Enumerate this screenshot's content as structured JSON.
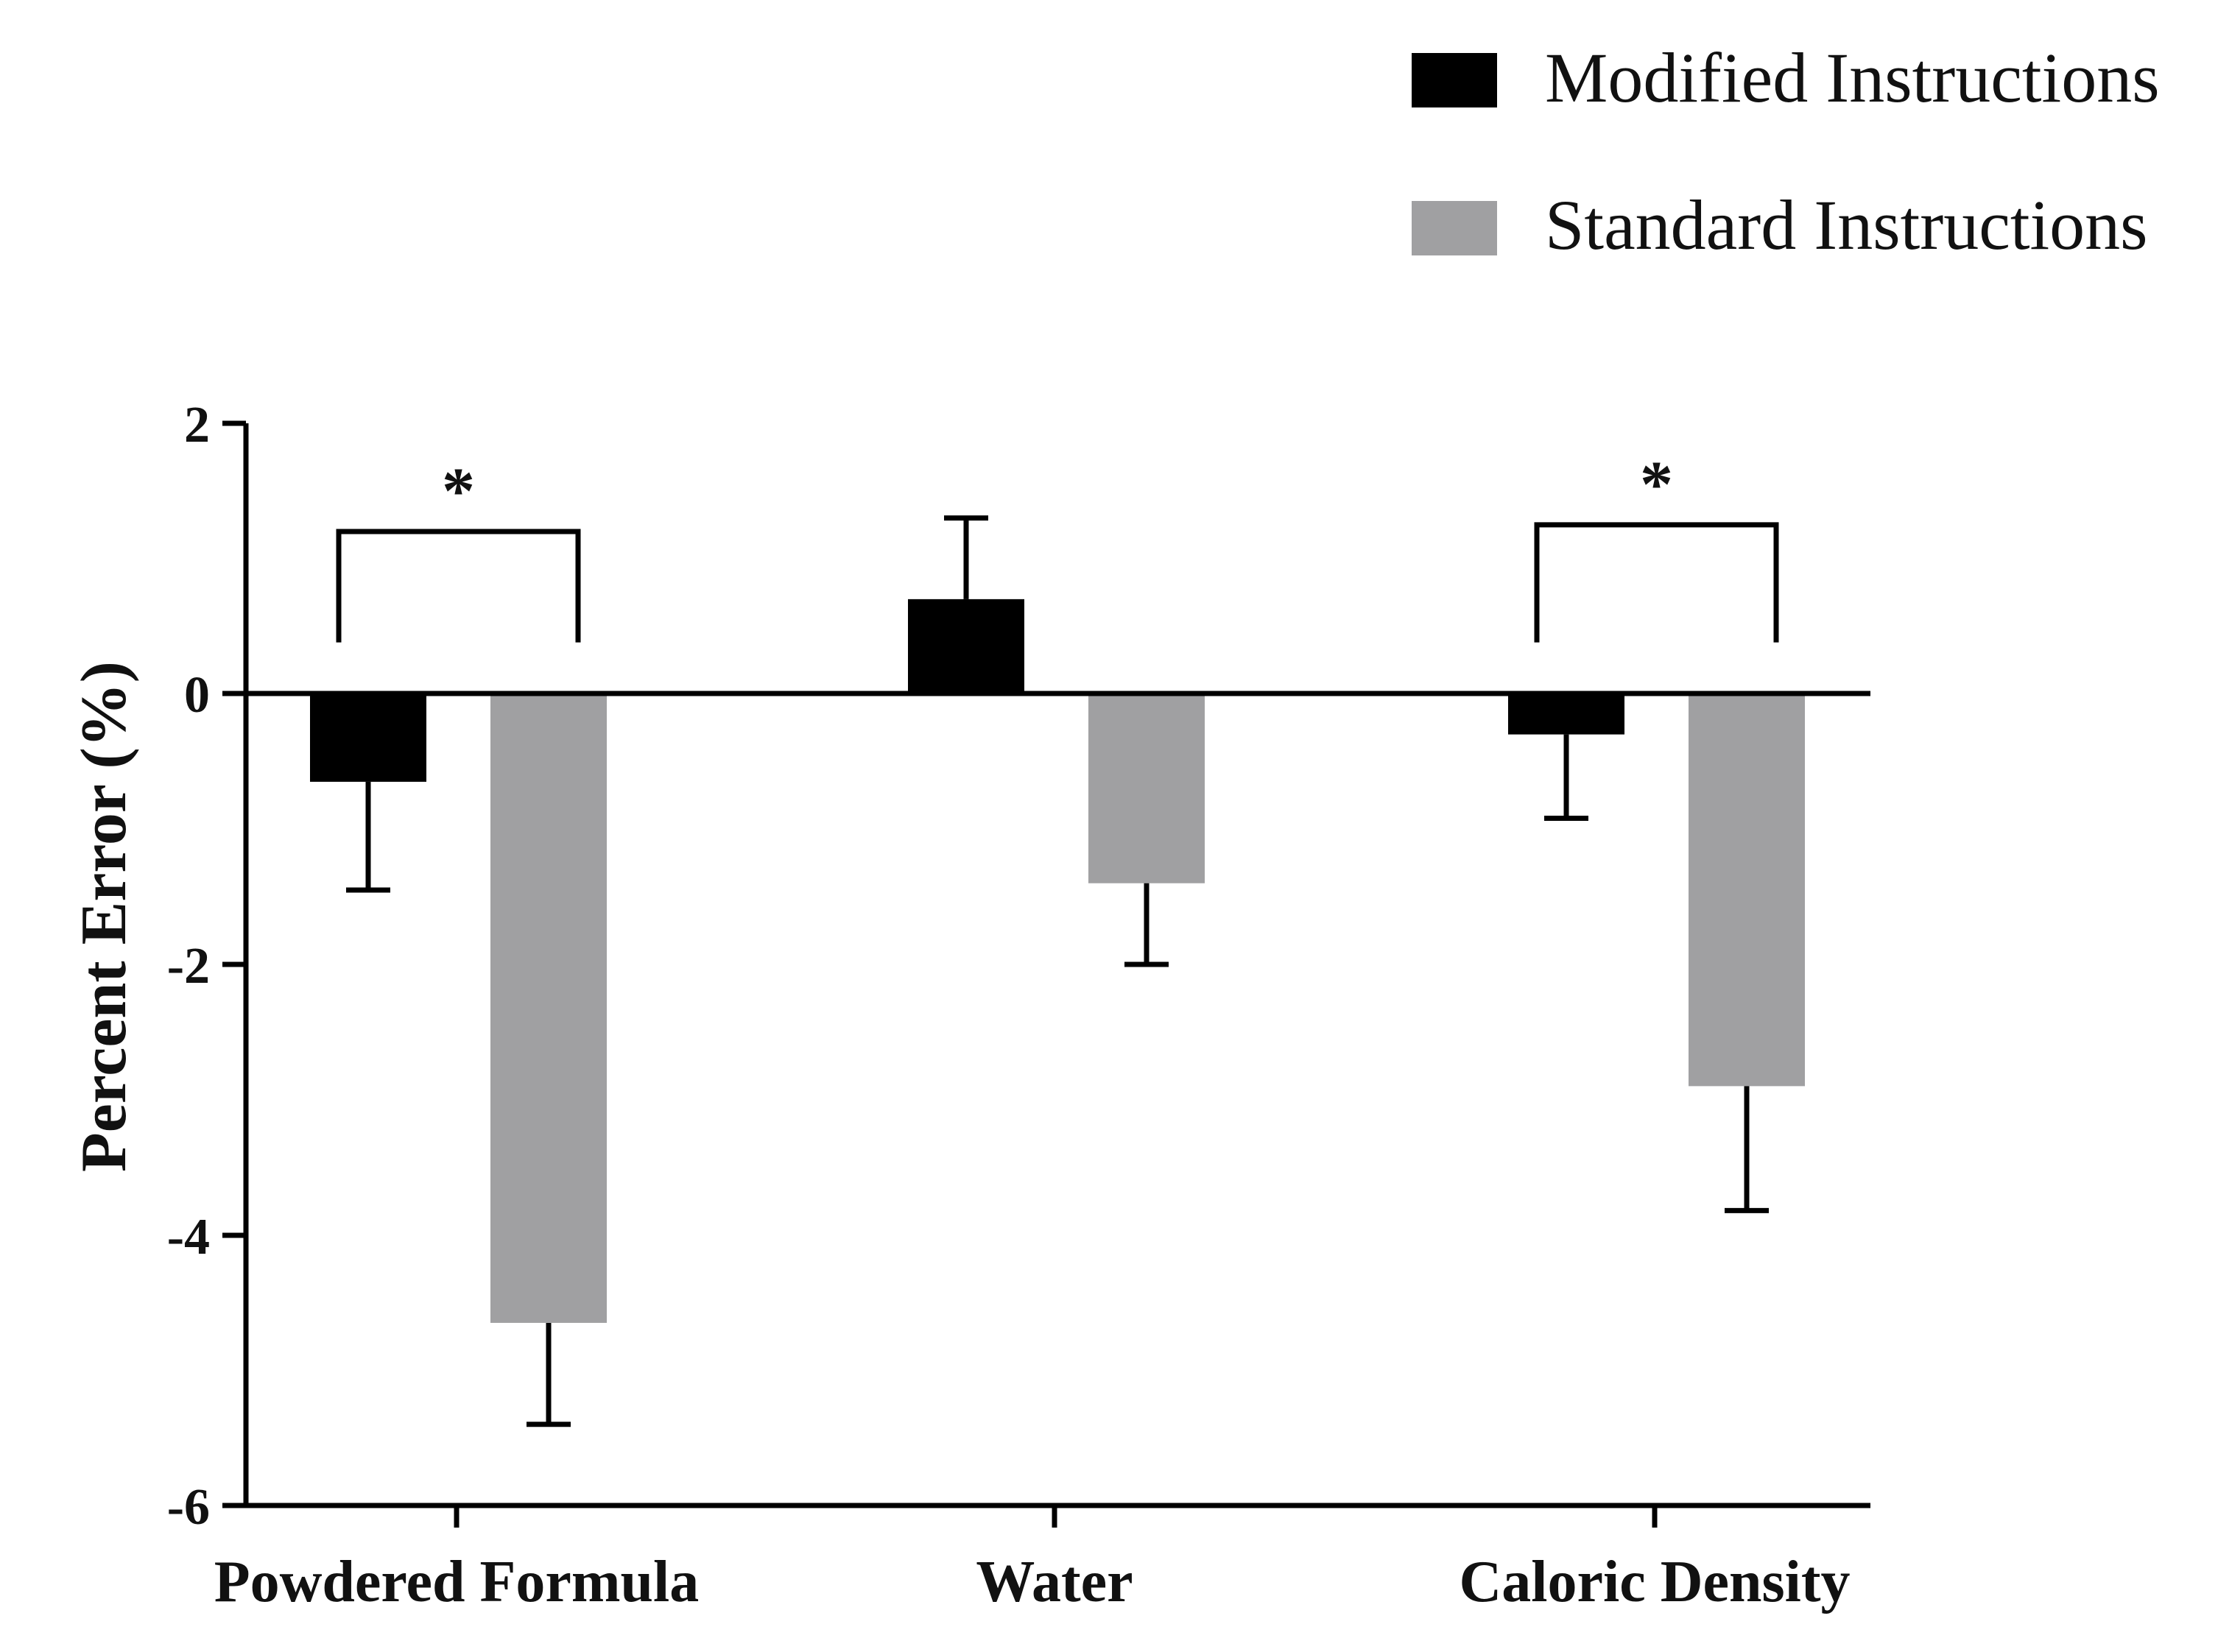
{
  "chart_data": {
    "type": "bar",
    "title": "",
    "xlabel": "",
    "ylabel": "Percent  Error (%)",
    "ylim": [
      -6,
      2
    ],
    "yticks": [
      2,
      0,
      -2,
      -4,
      -6
    ],
    "ytick_labels": [
      "2",
      "0",
      "-2",
      "-4",
      "-6"
    ],
    "categories": [
      "Powdered Formula",
      "Water",
      "Caloric Density"
    ],
    "series": [
      {
        "name": "Modified Instructions",
        "color": "#000000",
        "values": [
          -0.65,
          0.7,
          -0.3
        ],
        "errors": [
          0.8,
          0.6,
          0.62
        ]
      },
      {
        "name": "Standard Instructions",
        "color": "#a0a0a2",
        "values": [
          -4.65,
          -1.4,
          -2.9
        ],
        "errors": [
          0.75,
          0.6,
          0.92
        ]
      }
    ],
    "significance": [
      {
        "category_index": 0,
        "label": "*",
        "bracket_level": 1.2
      },
      {
        "category_index": 2,
        "label": "*",
        "bracket_level": 1.25
      }
    ],
    "legend": {
      "position": "top-right",
      "entries": [
        "Modified Instructions",
        "Standard Instructions"
      ]
    }
  }
}
